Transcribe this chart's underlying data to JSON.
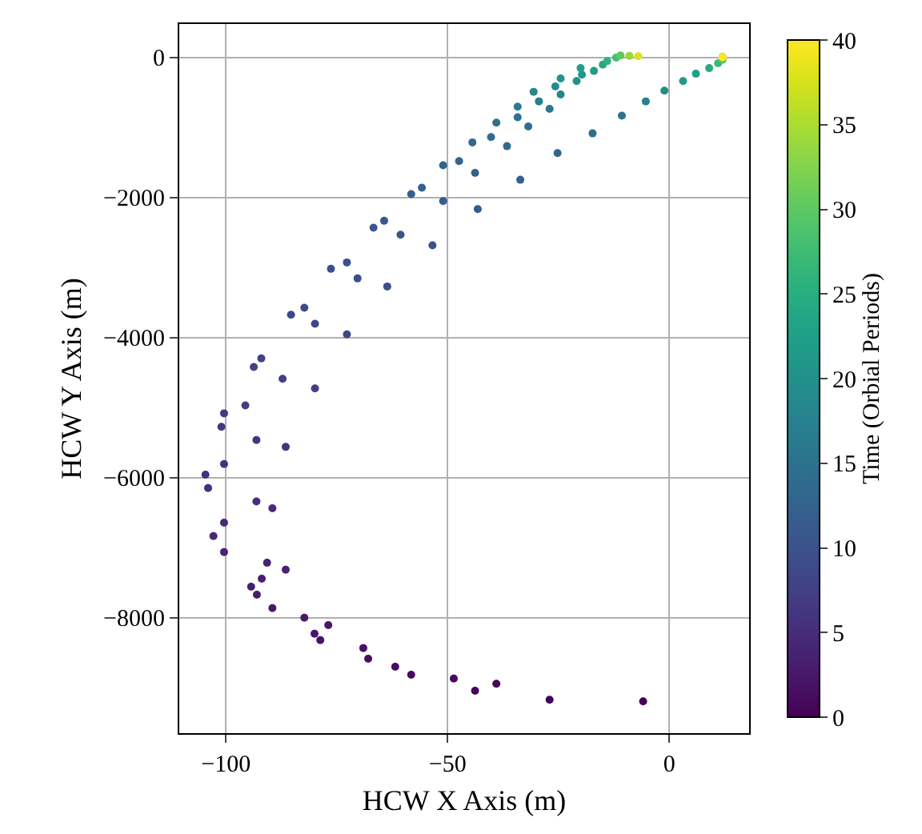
{
  "chart_data": {
    "type": "scatter",
    "xlabel": "HCW X Axis (m)",
    "ylabel": "HCW Y Axis (m)",
    "clabel": "Time (Orbial Periods)",
    "x": [
      -5.9,
      -27,
      -43.8,
      -39,
      -48.6,
      -58.2,
      -61.8,
      -67.9,
      -69,
      -78.7,
      -80,
      -76.9,
      -82.3,
      -89.5,
      -93,
      -94.3,
      -91.9,
      -86.5,
      -90.7,
      -100.4,
      -102.8,
      -100.4,
      -89.5,
      -93.1,
      -104,
      -104.6,
      -100.4,
      -86.5,
      -93.1,
      -101,
      -100.4,
      -95.6,
      -79.9,
      -87.2,
      -93.7,
      -92,
      -72.7,
      -79.9,
      -85.3,
      -82.3,
      -63.6,
      -70.3,
      -76.3,
      -72.7,
      -53.4,
      -60.6,
      -66.7,
      -64.3,
      -43.2,
      -51,
      -58.2,
      -55.8,
      -33.6,
      -43.8,
      -51,
      -47.4,
      -25.2,
      -36.6,
      -44.4,
      -40.2,
      -17.3,
      -31.8,
      -39,
      -34.2,
      -10.7,
      -27,
      -34.2,
      -29.4,
      -5.3,
      -24.5,
      -30.6,
      -25.7,
      -1.1,
      -20.9,
      -24.5,
      -19.7,
      3.1,
      -17,
      -20,
      6,
      -15,
      9,
      -14,
      11,
      -12,
      12,
      -11,
      12,
      -9,
      12,
      -7,
      12
    ],
    "values": [
      -9196,
      -9173,
      -9044,
      -8944,
      -8869,
      -8816,
      -8701,
      -8587,
      -8434,
      -8320,
      -8229,
      -8107,
      -8000,
      -7863,
      -7673,
      -7558,
      -7444,
      -7314,
      -7216,
      -7063,
      -6834,
      -6644,
      -6438,
      -6339,
      -6148,
      -5958,
      -5806,
      -5561,
      -5463,
      -5273,
      -5081,
      -4967,
      -4725,
      -4587,
      -4419,
      -4297,
      -3954,
      -3802,
      -3673,
      -3573,
      -3269,
      -3154,
      -3017,
      -2926,
      -2682,
      -2530,
      -2430,
      -2331,
      -2164,
      -2050,
      -1950,
      -1859,
      -1745,
      -1646,
      -1539,
      -1478,
      -1364,
      -1265,
      -1211,
      -1135,
      -1082,
      -983,
      -929,
      -853,
      -830,
      -731,
      -701,
      -625,
      -625,
      -526,
      -488,
      -411,
      -472,
      -335,
      -297,
      -244,
      -335,
      -190,
      -150,
      -230,
      -100,
      -150,
      -50,
      -80,
      0,
      -30,
      30,
      10,
      25,
      5,
      20,
      5
    ],
    "cvalues": [
      0,
      0.3,
      0.6,
      0.8,
      1,
      1.2,
      1.4,
      1.6,
      1.8,
      2,
      2.2,
      2.4,
      2.6,
      2.8,
      3,
      3.2,
      3.4,
      3.6,
      3.8,
      4,
      4.3,
      4.5,
      4.8,
      5,
      5.3,
      5.5,
      5.8,
      6,
      6.3,
      6.5,
      6.8,
      7,
      7.3,
      7.5,
      7.8,
      8,
      8.3,
      8.5,
      8.8,
      9,
      9.3,
      9.5,
      9.8,
      10,
      10.3,
      10.5,
      10.8,
      11,
      11.3,
      11.5,
      11.8,
      12,
      12.3,
      12.5,
      12.8,
      13,
      13.3,
      13.5,
      13.8,
      14,
      14.3,
      14.5,
      14.8,
      15,
      15.5,
      16,
      16.5,
      17,
      17.5,
      18,
      18.5,
      19,
      19.5,
      20,
      20.5,
      21,
      21.5,
      22,
      22.5,
      23,
      24,
      25,
      26,
      27,
      28,
      29,
      30,
      32,
      34,
      36,
      38,
      40
    ],
    "xlim": [
      -110.5,
      18
    ],
    "xticks": [
      {
        "value": -100,
        "label": "−100"
      },
      {
        "value": -50,
        "label": "−50"
      },
      0
    ],
    "ylim": [
      -9650,
      480
    ],
    "yticks": [
      {
        "value": -8000,
        "label": "−8000"
      },
      {
        "value": -6000,
        "label": "−6000"
      },
      {
        "value": -4000,
        "label": "−4000"
      },
      {
        "value": -2000,
        "label": "−2000"
      },
      0
    ],
    "clim": [
      0,
      40
    ],
    "cticks": [
      0,
      5,
      10,
      15,
      20,
      25,
      30,
      35,
      40
    ],
    "grid": true,
    "marker": "circle"
  }
}
